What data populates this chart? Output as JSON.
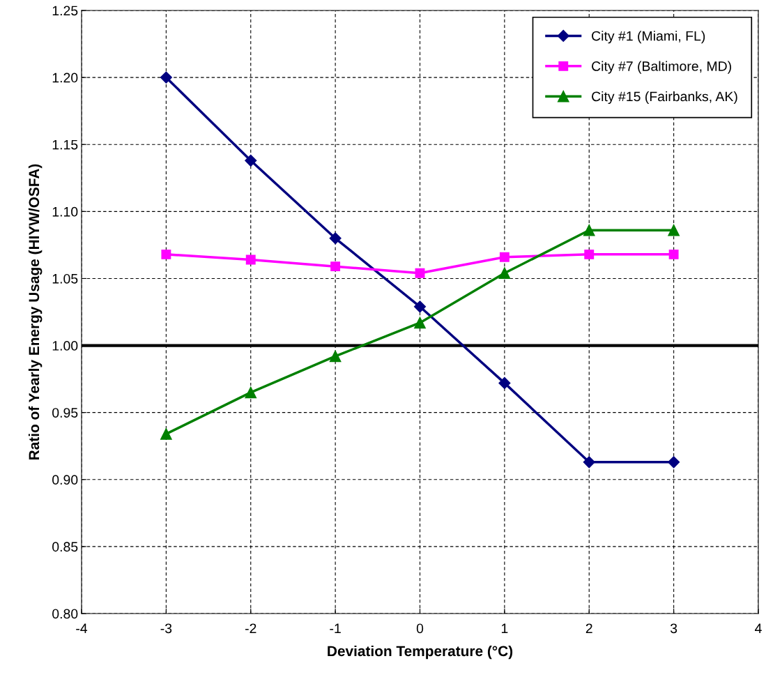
{
  "chart_data": {
    "type": "line",
    "xlabel": "Deviation Temperature (°C)",
    "ylabel": "Ratio of Yearly Energy Usage (HIYW/OSFA)",
    "x": [
      -3,
      -2,
      -1,
      0,
      1,
      2,
      3
    ],
    "series": [
      {
        "name": "City #1 (Miami, FL)",
        "color": "#000080",
        "marker": "diamond",
        "values": [
          1.2,
          1.138,
          1.08,
          1.029,
          0.972,
          0.913,
          0.913
        ]
      },
      {
        "name": "City #7 (Baltimore, MD)",
        "color": "#ff00ff",
        "marker": "square",
        "values": [
          1.068,
          1.064,
          1.059,
          1.054,
          1.066,
          1.068,
          1.068
        ]
      },
      {
        "name": "City #15 (Fairbanks, AK)",
        "color": "#008000",
        "marker": "triangle",
        "values": [
          0.934,
          0.965,
          0.992,
          1.017,
          1.054,
          1.086,
          1.086
        ]
      }
    ],
    "xlim": [
      -4,
      4
    ],
    "xticks": [
      -4,
      -3,
      -2,
      -1,
      0,
      1,
      2,
      3,
      4
    ],
    "ylim": [
      0.8,
      1.25
    ],
    "yticks": [
      {
        "value": 0.8,
        "label": "0.80"
      },
      {
        "value": 0.85,
        "label": "0.85"
      },
      {
        "value": 0.9,
        "label": "0.90"
      },
      {
        "value": 0.95,
        "label": "0.95"
      },
      {
        "value": 1.0,
        "label": "1.00"
      },
      {
        "value": 1.05,
        "label": "1.05"
      },
      {
        "value": 1.1,
        "label": "1.10"
      },
      {
        "value": 1.15,
        "label": "1.15"
      },
      {
        "value": 1.2,
        "label": "1.20"
      },
      {
        "value": 1.25,
        "label": "1.25"
      }
    ],
    "ref_lines": [
      {
        "axis": "y",
        "value": 1.0,
        "color": "#000000"
      }
    ],
    "grid": true,
    "legend": "top right",
    "line_style": "solid"
  }
}
